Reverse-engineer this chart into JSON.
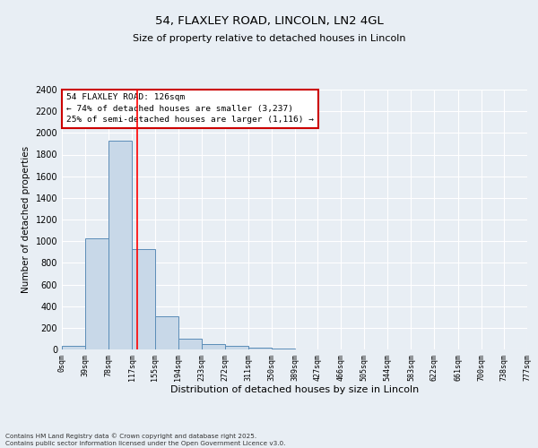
{
  "title1": "54, FLAXLEY ROAD, LINCOLN, LN2 4GL",
  "title2": "Size of property relative to detached houses in Lincoln",
  "xlabel": "Distribution of detached houses by size in Lincoln",
  "ylabel": "Number of detached properties",
  "bar_values": [
    30,
    1030,
    1930,
    930,
    310,
    100,
    50,
    30,
    20,
    5,
    3,
    2,
    1,
    0,
    0,
    0,
    0,
    0,
    0,
    0
  ],
  "bin_edges": [
    0,
    39,
    78,
    117,
    155,
    194,
    233,
    272,
    311,
    350,
    389,
    427,
    466,
    505,
    544,
    583,
    622,
    661,
    700,
    738,
    777
  ],
  "tick_labels": [
    "0sqm",
    "39sqm",
    "78sqm",
    "117sqm",
    "155sqm",
    "194sqm",
    "233sqm",
    "272sqm",
    "311sqm",
    "350sqm",
    "389sqm",
    "427sqm",
    "466sqm",
    "505sqm",
    "544sqm",
    "583sqm",
    "622sqm",
    "661sqm",
    "700sqm",
    "738sqm",
    "777sqm"
  ],
  "bar_color": "#c8d8e8",
  "bar_edge_color": "#5b8db8",
  "red_line_x": 126,
  "ylim": [
    0,
    2400
  ],
  "yticks": [
    0,
    200,
    400,
    600,
    800,
    1000,
    1200,
    1400,
    1600,
    1800,
    2000,
    2200,
    2400
  ],
  "annotation_line1": "54 FLAXLEY ROAD: 126sqm",
  "annotation_line2": "← 74% of detached houses are smaller (3,237)",
  "annotation_line3": "25% of semi-detached houses are larger (1,116) →",
  "annotation_box_color": "#ffffff",
  "annotation_box_edge": "#cc0000",
  "background_color": "#e8eef4",
  "grid_color": "#ffffff",
  "footer1": "Contains HM Land Registry data © Crown copyright and database right 2025.",
  "footer2": "Contains public sector information licensed under the Open Government Licence v3.0."
}
